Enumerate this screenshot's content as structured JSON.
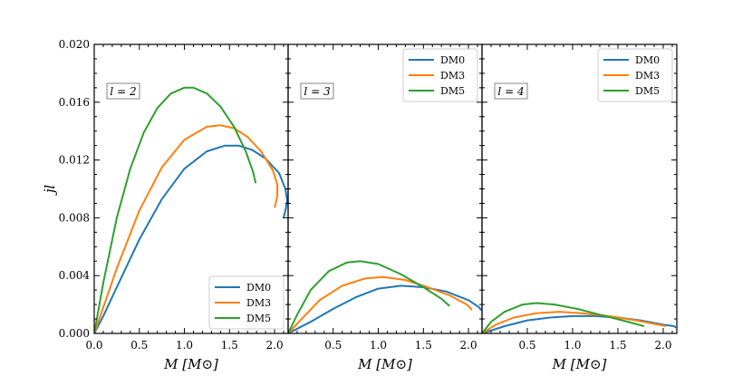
{
  "chart_data": [
    {
      "type": "line",
      "panel_label": "l = 2",
      "xlabel": "M [M⊙]",
      "ylabel": "j̇l",
      "xlim": [
        0,
        2.15
      ],
      "ylim": [
        0,
        0.02
      ],
      "xticks": [
        "0.0",
        "0.5",
        "1.0",
        "1.5",
        "2.0"
      ],
      "yticks": [
        "0.000",
        "0.004",
        "0.008",
        "0.012",
        "0.016",
        "0.020"
      ],
      "legend": {
        "placement": "bottom-right",
        "entries": [
          "DM0",
          "DM3",
          "DM5"
        ]
      },
      "series": [
        {
          "name": "DM0",
          "color": "#1f77b4",
          "points": [
            [
              0,
              0
            ],
            [
              0.1,
              0.0012
            ],
            [
              0.25,
              0.0032
            ],
            [
              0.5,
              0.0065
            ],
            [
              0.75,
              0.0093
            ],
            [
              1.0,
              0.0114
            ],
            [
              1.25,
              0.0126
            ],
            [
              1.45,
              0.013
            ],
            [
              1.6,
              0.013
            ],
            [
              1.75,
              0.0127
            ],
            [
              1.9,
              0.0121
            ],
            [
              2.05,
              0.0111
            ],
            [
              2.12,
              0.01
            ],
            [
              2.14,
              0.0092
            ],
            [
              2.12,
              0.0085
            ],
            [
              2.1,
              0.008
            ]
          ]
        },
        {
          "name": "DM3",
          "color": "#ff7f0e",
          "points": [
            [
              0,
              0
            ],
            [
              0.1,
              0.0018
            ],
            [
              0.25,
              0.0045
            ],
            [
              0.5,
              0.0085
            ],
            [
              0.75,
              0.0115
            ],
            [
              1.0,
              0.0134
            ],
            [
              1.25,
              0.0143
            ],
            [
              1.4,
              0.0144
            ],
            [
              1.55,
              0.0142
            ],
            [
              1.7,
              0.0136
            ],
            [
              1.85,
              0.0126
            ],
            [
              1.98,
              0.0113
            ],
            [
              2.03,
              0.0103
            ],
            [
              2.03,
              0.0095
            ],
            [
              2.0,
              0.0087
            ]
          ]
        },
        {
          "name": "DM5",
          "color": "#2ca02c",
          "points": [
            [
              0,
              0
            ],
            [
              0.1,
              0.0035
            ],
            [
              0.25,
              0.008
            ],
            [
              0.4,
              0.0114
            ],
            [
              0.55,
              0.0139
            ],
            [
              0.7,
              0.0156
            ],
            [
              0.85,
              0.0166
            ],
            [
              1.0,
              0.017
            ],
            [
              1.1,
              0.017
            ],
            [
              1.25,
              0.0166
            ],
            [
              1.4,
              0.0157
            ],
            [
              1.55,
              0.0143
            ],
            [
              1.68,
              0.0126
            ],
            [
              1.76,
              0.0112
            ],
            [
              1.79,
              0.0104
            ]
          ]
        }
      ]
    },
    {
      "type": "line",
      "panel_label": "l = 3",
      "xlabel": "M [M⊙]",
      "xlim": [
        0,
        2.15
      ],
      "ylim": [
        0,
        0.02
      ],
      "xticks": [
        "0.5",
        "1.0",
        "1.5",
        "2.0"
      ],
      "legend": {
        "placement": "top-right",
        "entries": [
          "DM0",
          "DM3",
          "DM5"
        ]
      },
      "series": [
        {
          "name": "DM0",
          "color": "#1f77b4",
          "points": [
            [
              0,
              0
            ],
            [
              0.25,
              0.0008
            ],
            [
              0.5,
              0.0017
            ],
            [
              0.75,
              0.0025
            ],
            [
              1.0,
              0.0031
            ],
            [
              1.25,
              0.0033
            ],
            [
              1.5,
              0.0032
            ],
            [
              1.75,
              0.0029
            ],
            [
              2.0,
              0.0023
            ],
            [
              2.12,
              0.0018
            ],
            [
              2.14,
              0.0016
            ]
          ]
        },
        {
          "name": "DM3",
          "color": "#ff7f0e",
          "points": [
            [
              0,
              0
            ],
            [
              0.15,
              0.001
            ],
            [
              0.35,
              0.0023
            ],
            [
              0.6,
              0.0033
            ],
            [
              0.85,
              0.0038
            ],
            [
              1.05,
              0.0039
            ],
            [
              1.3,
              0.0037
            ],
            [
              1.55,
              0.0032
            ],
            [
              1.8,
              0.0026
            ],
            [
              1.98,
              0.002
            ],
            [
              2.03,
              0.0017
            ],
            [
              2.03,
              0.0016
            ]
          ]
        },
        {
          "name": "DM5",
          "color": "#2ca02c",
          "points": [
            [
              0,
              0
            ],
            [
              0.1,
              0.0013
            ],
            [
              0.25,
              0.003
            ],
            [
              0.45,
              0.0043
            ],
            [
              0.65,
              0.0049
            ],
            [
              0.8,
              0.005
            ],
            [
              1.0,
              0.0048
            ],
            [
              1.25,
              0.0041
            ],
            [
              1.5,
              0.0032
            ],
            [
              1.7,
              0.0024
            ],
            [
              1.79,
              0.0019
            ]
          ]
        }
      ]
    },
    {
      "type": "line",
      "panel_label": "l = 4",
      "xlabel": "M [M⊙]",
      "xlim": [
        0,
        2.15
      ],
      "ylim": [
        0,
        0.02
      ],
      "xticks": [
        "0.5",
        "1.0",
        "1.5",
        "2.0"
      ],
      "legend": {
        "placement": "top-right",
        "entries": [
          "DM0",
          "DM3",
          "DM5"
        ]
      },
      "series": [
        {
          "name": "DM0",
          "color": "#1f77b4",
          "points": [
            [
              0,
              0
            ],
            [
              0.25,
              0.0005
            ],
            [
              0.5,
              0.0009
            ],
            [
              0.75,
              0.0011
            ],
            [
              1.0,
              0.0012
            ],
            [
              1.25,
              0.0012
            ],
            [
              1.5,
              0.0011
            ],
            [
              1.75,
              0.0009
            ],
            [
              2.0,
              0.0006
            ],
            [
              2.12,
              0.0005
            ],
            [
              2.14,
              0.0004
            ]
          ]
        },
        {
          "name": "DM3",
          "color": "#ff7f0e",
          "points": [
            [
              0,
              0
            ],
            [
              0.15,
              0.0006
            ],
            [
              0.35,
              0.0011
            ],
            [
              0.6,
              0.0014
            ],
            [
              0.85,
              0.0015
            ],
            [
              1.1,
              0.0014
            ],
            [
              1.4,
              0.0012
            ],
            [
              1.7,
              0.0009
            ],
            [
              1.95,
              0.0006
            ],
            [
              2.03,
              0.0005
            ]
          ]
        },
        {
          "name": "DM5",
          "color": "#2ca02c",
          "points": [
            [
              0,
              0
            ],
            [
              0.1,
              0.0008
            ],
            [
              0.25,
              0.0015
            ],
            [
              0.45,
              0.002
            ],
            [
              0.6,
              0.0021
            ],
            [
              0.8,
              0.002
            ],
            [
              1.05,
              0.0017
            ],
            [
              1.3,
              0.0013
            ],
            [
              1.55,
              0.0009
            ],
            [
              1.79,
              0.0005
            ]
          ]
        }
      ]
    }
  ]
}
